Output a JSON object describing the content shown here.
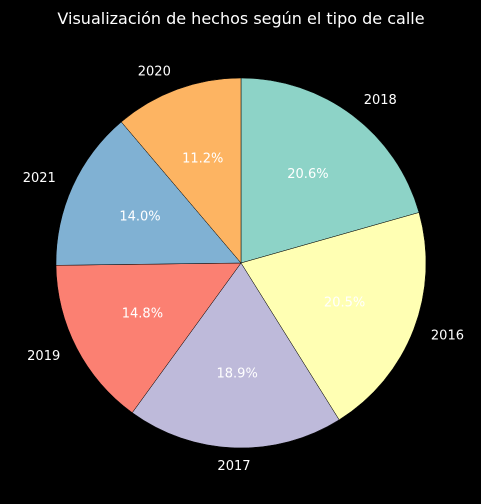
{
  "chart_data": {
    "type": "pie",
    "title": "Visualización de hechos según el tipo de calle",
    "slices": [
      {
        "label": "2018",
        "value": 20.6,
        "pct_label": "20.6%",
        "color": "#8dd3c7"
      },
      {
        "label": "2016",
        "value": 20.5,
        "pct_label": "20.5%",
        "color": "#ffffb3"
      },
      {
        "label": "2017",
        "value": 18.9,
        "pct_label": "18.9%",
        "color": "#bebada"
      },
      {
        "label": "2019",
        "value": 14.8,
        "pct_label": "14.8%",
        "color": "#fb8072"
      },
      {
        "label": "2021",
        "value": 14.0,
        "pct_label": "14.0%",
        "color": "#80b1d3"
      },
      {
        "label": "2020",
        "value": 11.2,
        "pct_label": "11.2%",
        "color": "#fdb462"
      }
    ],
    "start_angle": 90,
    "direction": "clockwise",
    "background": "#000000"
  }
}
